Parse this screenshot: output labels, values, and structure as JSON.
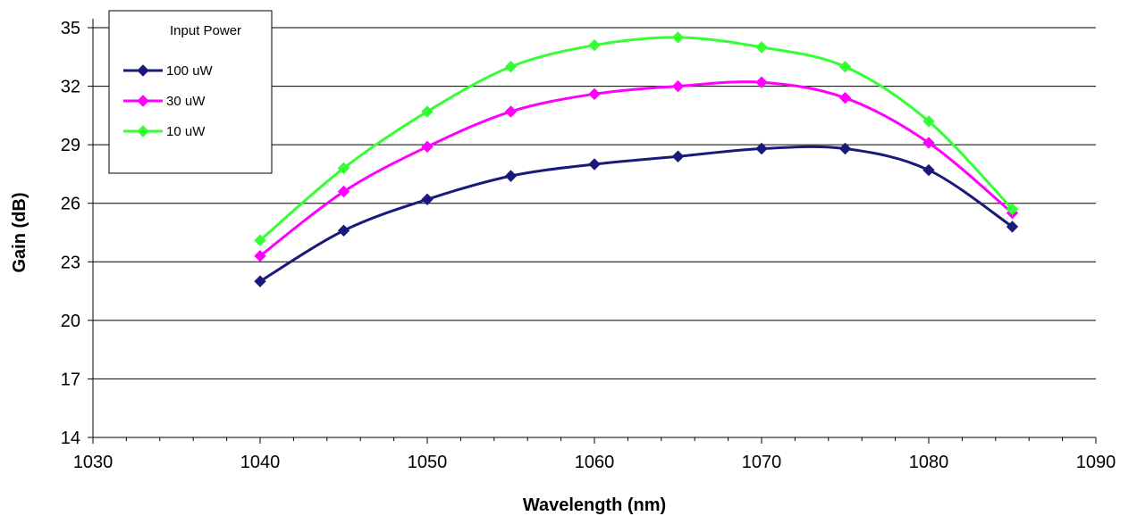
{
  "chart_data": {
    "type": "line",
    "title": "",
    "xlabel": "Wavelength (nm)",
    "ylabel": "Gain (dB)",
    "xlim": [
      1030,
      1090
    ],
    "ylim": [
      14,
      35
    ],
    "x_ticks": [
      1030,
      1040,
      1050,
      1060,
      1070,
      1080,
      1090
    ],
    "y_ticks": [
      14,
      17,
      20,
      23,
      26,
      29,
      32,
      35
    ],
    "x": [
      1040,
      1045,
      1050,
      1055,
      1060,
      1065,
      1070,
      1075,
      1080,
      1085
    ],
    "grid": "horizontal major gridlines",
    "legend": {
      "title": "Input Power",
      "position": "top-left"
    },
    "series": [
      {
        "name": "100 uW",
        "color": "#1a1a7a",
        "marker": "diamond",
        "values": [
          22.0,
          24.6,
          26.2,
          27.4,
          28.0,
          28.4,
          28.8,
          28.8,
          27.7,
          24.8
        ]
      },
      {
        "name": "30 uW",
        "color": "#ff00ff",
        "marker": "diamond",
        "values": [
          23.3,
          26.6,
          28.9,
          30.7,
          31.6,
          32.0,
          32.2,
          31.4,
          29.1,
          25.5
        ]
      },
      {
        "name": "10 uW",
        "color": "#33ff33",
        "marker": "diamond",
        "values": [
          24.1,
          27.8,
          30.7,
          33.0,
          34.1,
          34.5,
          34.0,
          33.0,
          30.2,
          25.7
        ]
      }
    ]
  }
}
